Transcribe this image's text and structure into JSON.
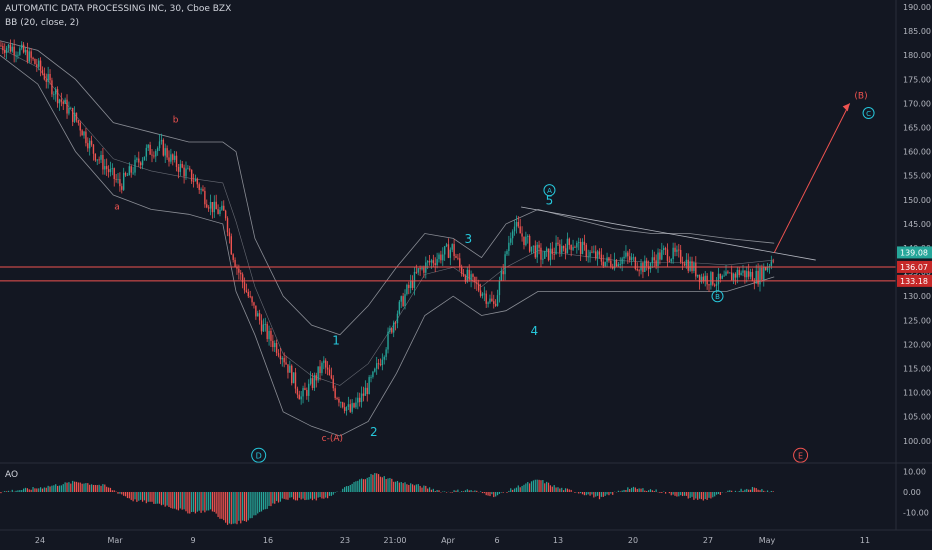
{
  "header": {
    "title": "AUTOMATIC DATA PROCESSING INC, 30, Cboe BZX",
    "indicator": "BB (20, close, 2)"
  },
  "ao_panel": {
    "label": "AO",
    "ticks": [
      "10.00",
      "0.00",
      "-10.00"
    ]
  },
  "colors": {
    "background": "#131722",
    "up": "#26a69a",
    "down": "#ef5350",
    "band": "#8a8d95",
    "grid": "#1e222d",
    "axis_text": "#b2b5be",
    "wave_cyan": "#26c6da",
    "wave_red": "#ef5350",
    "last_price_bg": "#26a69a",
    "level_bg": "#c62828"
  },
  "chart_data": {
    "type": "candlestick",
    "title": "AUTOMATIC DATA PROCESSING INC, 30, Cboe BZX",
    "y_ticks": [
      "190.00",
      "185.00",
      "180.00",
      "175.00",
      "170.00",
      "165.00",
      "160.00",
      "155.00",
      "150.00",
      "145.00",
      "140.00",
      "135.00",
      "130.00",
      "125.00",
      "120.00",
      "115.00",
      "110.00",
      "105.00",
      "100.00"
    ],
    "ylim": [
      96,
      191
    ],
    "x_ticks": [
      "24",
      "Mar",
      "9",
      "16",
      "23",
      "21:00",
      "Apr",
      "6",
      "13",
      "20",
      "27",
      "May",
      "11"
    ],
    "grid": false,
    "price_path": [
      [
        0,
        182
      ],
      [
        8,
        181.5
      ],
      [
        15,
        180
      ],
      [
        22,
        177
      ],
      [
        32,
        171
      ],
      [
        42,
        166
      ],
      [
        50,
        160
      ],
      [
        58,
        156
      ],
      [
        64,
        153
      ],
      [
        70,
        156
      ],
      [
        78,
        160
      ],
      [
        86,
        161
      ],
      [
        92,
        158
      ],
      [
        98,
        156
      ],
      [
        104,
        154
      ],
      [
        110,
        150
      ],
      [
        114,
        148
      ],
      [
        120,
        147
      ],
      [
        123,
        140
      ],
      [
        126,
        136
      ],
      [
        134,
        128
      ],
      [
        142,
        122
      ],
      [
        150,
        118
      ],
      [
        160,
        109
      ],
      [
        166,
        112
      ],
      [
        172,
        116
      ],
      [
        178,
        110
      ],
      [
        186,
        106
      ],
      [
        192,
        109
      ],
      [
        198,
        113
      ],
      [
        204,
        119
      ],
      [
        210,
        126
      ],
      [
        216,
        131
      ],
      [
        222,
        135
      ],
      [
        228,
        137
      ],
      [
        236,
        139
      ],
      [
        240,
        140
      ],
      [
        244,
        136
      ],
      [
        250,
        133
      ],
      [
        256,
        131
      ],
      [
        262,
        128
      ],
      [
        266,
        134
      ],
      [
        272,
        145
      ],
      [
        280,
        141
      ],
      [
        288,
        138
      ],
      [
        296,
        140
      ],
      [
        304,
        141
      ],
      [
        312,
        139
      ],
      [
        322,
        137
      ],
      [
        332,
        138
      ],
      [
        342,
        136
      ],
      [
        352,
        139
      ],
      [
        362,
        138
      ],
      [
        372,
        134
      ],
      [
        382,
        133
      ],
      [
        392,
        135
      ],
      [
        402,
        134
      ],
      [
        410,
        138
      ]
    ],
    "bands": {
      "upper": [
        [
          0,
          183
        ],
        [
          20,
          181
        ],
        [
          40,
          175
        ],
        [
          60,
          166
        ],
        [
          80,
          164
        ],
        [
          100,
          162
        ],
        [
          118,
          162
        ],
        [
          125,
          160
        ],
        [
          135,
          142
        ],
        [
          150,
          130
        ],
        [
          165,
          124
        ],
        [
          180,
          122
        ],
        [
          195,
          128
        ],
        [
          210,
          136
        ],
        [
          225,
          143
        ],
        [
          240,
          142
        ],
        [
          255,
          138
        ],
        [
          268,
          145
        ],
        [
          285,
          148
        ],
        [
          305,
          146
        ],
        [
          325,
          144
        ],
        [
          345,
          143
        ],
        [
          365,
          143
        ],
        [
          385,
          142
        ],
        [
          410,
          141
        ]
      ],
      "lower": [
        [
          0,
          180
        ],
        [
          20,
          174
        ],
        [
          40,
          160
        ],
        [
          60,
          151
        ],
        [
          80,
          148
        ],
        [
          100,
          147
        ],
        [
          118,
          145
        ],
        [
          125,
          131
        ],
        [
          135,
          122
        ],
        [
          150,
          106
        ],
        [
          165,
          103
        ],
        [
          180,
          101
        ],
        [
          195,
          104
        ],
        [
          210,
          114
        ],
        [
          225,
          126
        ],
        [
          240,
          130
        ],
        [
          255,
          126
        ],
        [
          268,
          127
        ],
        [
          285,
          131
        ],
        [
          305,
          131
        ],
        [
          325,
          131
        ],
        [
          345,
          131
        ],
        [
          365,
          131
        ],
        [
          385,
          131
        ],
        [
          410,
          134
        ]
      ]
    },
    "horizontal_levels": [
      {
        "value": 136.07,
        "label": "136.07"
      },
      {
        "value": 133.18,
        "label": "133.18"
      }
    ],
    "last_price": {
      "value": 139.08,
      "label": "139.08"
    },
    "forecast_line": {
      "from": [
        410,
        139
      ],
      "to": [
        450,
        170
      ]
    },
    "trendline": {
      "from": [
        276,
        148.5
      ],
      "to": [
        432,
        137.5
      ]
    },
    "wave_labels": [
      {
        "text": "b",
        "x": 93,
        "y": 166,
        "color": "red"
      },
      {
        "text": "a",
        "x": 62,
        "y": 148,
        "color": "red"
      },
      {
        "text": "1",
        "x": 178,
        "y": 120,
        "color": "cyan"
      },
      {
        "text": "c-(A)",
        "x": 176,
        "y": 100,
        "color": "red"
      },
      {
        "text": "2",
        "x": 198,
        "y": 101,
        "color": "cyan"
      },
      {
        "text": "3",
        "x": 248,
        "y": 141,
        "color": "cyan"
      },
      {
        "text": "4",
        "x": 283,
        "y": 122,
        "color": "cyan"
      },
      {
        "text": "5",
        "x": 291,
        "y": 149,
        "color": "cyan"
      },
      {
        "text": "A",
        "x": 291,
        "y": 152,
        "color": "cyan",
        "circled": true
      },
      {
        "text": "B",
        "x": 380,
        "y": 130,
        "color": "cyan",
        "circled": true
      },
      {
        "text": "(B)",
        "x": 456,
        "y": 171,
        "color": "red"
      },
      {
        "text": "C",
        "x": 460,
        "y": 168,
        "color": "cyan",
        "circled": true
      },
      {
        "text": "D",
        "x": 137,
        "y": 97,
        "color": "cyan",
        "circled": true
      },
      {
        "text": "E",
        "x": 424,
        "y": 97,
        "color": "red",
        "circled": true
      }
    ]
  }
}
